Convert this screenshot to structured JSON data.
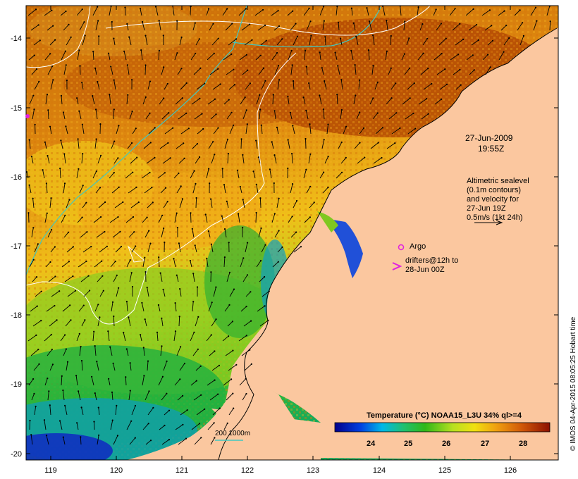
{
  "map": {
    "x_ticks": [
      "119",
      "120",
      "121",
      "122",
      "123",
      "124",
      "125",
      "126"
    ],
    "y_ticks": [
      "-14",
      "-15",
      "-16",
      "-17",
      "-18",
      "-19",
      "-20"
    ]
  },
  "annotations": {
    "date": "27-Jun-2009",
    "time": "19:55Z",
    "sealevel_lines": [
      "Altimetric sealevel",
      "(0.1m contours)",
      "and velocity for",
      "27-Jun 19Z",
      "0.5m/s (1kt 24h)"
    ],
    "argo_label": "Argo",
    "drifters_lines": [
      "drifters@12h to",
      "28-Jun 00Z"
    ],
    "isobath_label": "200  1000m"
  },
  "colorbar": {
    "title": "Temperature (°C) NOAA15_L3U 34% ql>=4",
    "ticks": [
      "24",
      "25",
      "26",
      "27",
      "28"
    ]
  },
  "credit": "© IMOS 04-Apr-2015 08:05:25 Hobart time",
  "colors": {
    "land": "#fbc79f",
    "argo_marker": "#e020e0",
    "drifter_marker": "#e020e0",
    "isobath": "#3fc8c0",
    "sealevel_contour": "#ffffff",
    "arrows": "#000000"
  }
}
